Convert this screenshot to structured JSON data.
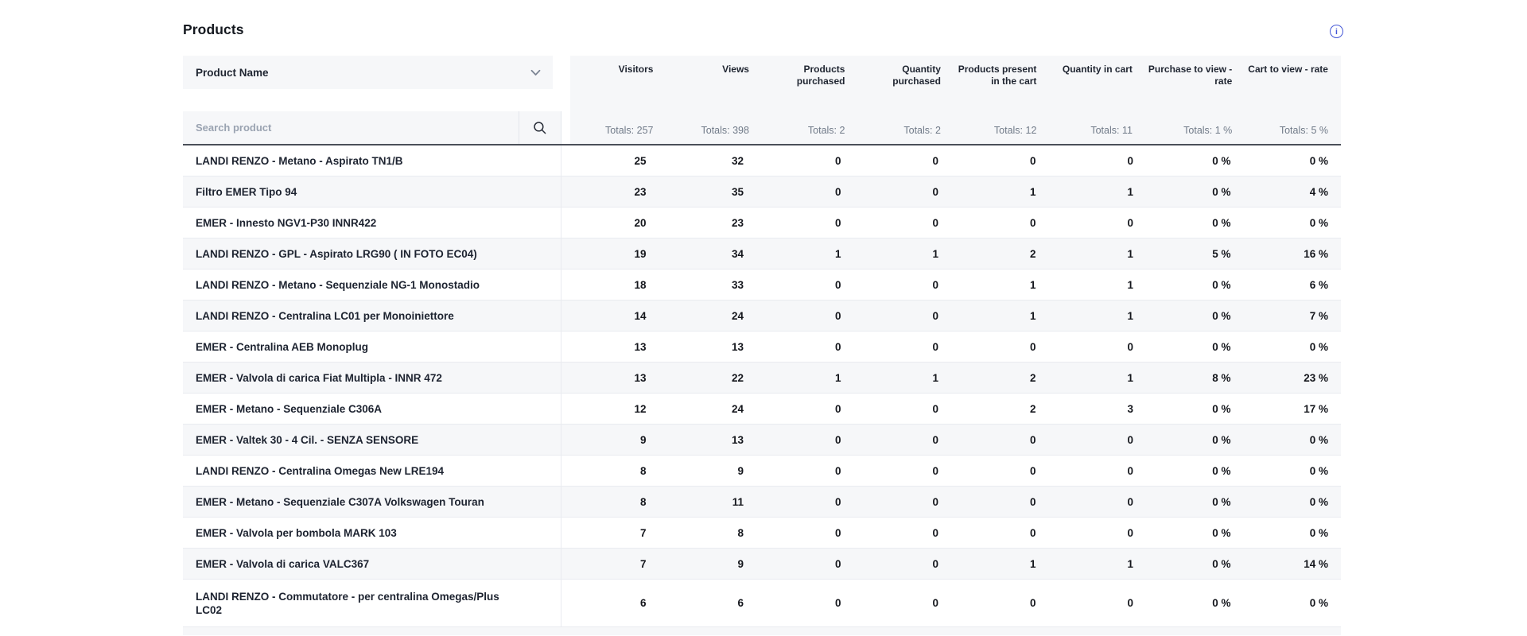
{
  "title": "Products",
  "colors": {
    "accent": "#4356d6",
    "header_bg": "#f6f7f9",
    "dark_divider": "#4b4f59"
  },
  "icons": {
    "info": "info-icon",
    "chevron": "chevron-down-icon",
    "search": "search-icon"
  },
  "product_column": {
    "header": "Product Name",
    "search_placeholder": "Search product"
  },
  "columns": [
    {
      "label": "Visitors",
      "total": "Totals: 257"
    },
    {
      "label": "Views",
      "total": "Totals: 398"
    },
    {
      "label": "Products\npurchased",
      "total": "Totals: 2"
    },
    {
      "label": "Quantity\npurchased",
      "total": "Totals: 2"
    },
    {
      "label": "Products present\nin the cart",
      "total": "Totals: 12"
    },
    {
      "label": "Quantity in cart",
      "total": "Totals: 11"
    },
    {
      "label": "Purchase to view -\nrate",
      "total": "Totals: 1 %"
    },
    {
      "label": "Cart to view - rate",
      "total": "Totals: 5 %"
    }
  ],
  "rows": [
    {
      "name": "LANDI RENZO - Metano - Aspirato TN1/B",
      "values": [
        "25",
        "32",
        "0",
        "0",
        "0",
        "0",
        "0 %",
        "0 %"
      ]
    },
    {
      "name": "Filtro EMER Tipo 94",
      "values": [
        "23",
        "35",
        "0",
        "0",
        "1",
        "1",
        "0 %",
        "4 %"
      ]
    },
    {
      "name": "EMER - Innesto NGV1-P30 INNR422",
      "values": [
        "20",
        "23",
        "0",
        "0",
        "0",
        "0",
        "0 %",
        "0 %"
      ]
    },
    {
      "name": "LANDI RENZO - GPL - Aspirato LRG90 ( IN FOTO EC04)",
      "values": [
        "19",
        "34",
        "1",
        "1",
        "2",
        "1",
        "5 %",
        "16 %"
      ]
    },
    {
      "name": "LANDI RENZO - Metano - Sequenziale NG-1 Monostadio",
      "values": [
        "18",
        "33",
        "0",
        "0",
        "1",
        "1",
        "0 %",
        "6 %"
      ]
    },
    {
      "name": "LANDI RENZO - Centralina LC01 per Monoiniettore",
      "values": [
        "14",
        "24",
        "0",
        "0",
        "1",
        "1",
        "0 %",
        "7 %"
      ]
    },
    {
      "name": "EMER - Centralina AEB Monoplug",
      "values": [
        "13",
        "13",
        "0",
        "0",
        "0",
        "0",
        "0 %",
        "0 %"
      ]
    },
    {
      "name": "EMER - Valvola di carica Fiat Multipla - INNR 472",
      "values": [
        "13",
        "22",
        "1",
        "1",
        "2",
        "1",
        "8 %",
        "23 %"
      ]
    },
    {
      "name": "EMER - Metano - Sequenziale C306A",
      "values": [
        "12",
        "24",
        "0",
        "0",
        "2",
        "3",
        "0 %",
        "17 %"
      ]
    },
    {
      "name": "EMER - Valtek 30 - 4 Cil. - SENZA SENSORE",
      "values": [
        "9",
        "13",
        "0",
        "0",
        "0",
        "0",
        "0 %",
        "0 %"
      ]
    },
    {
      "name": "LANDI RENZO - Centralina Omegas New LRE194",
      "values": [
        "8",
        "9",
        "0",
        "0",
        "0",
        "0",
        "0 %",
        "0 %"
      ]
    },
    {
      "name": "EMER - Metano - Sequenziale C307A Volkswagen Touran",
      "values": [
        "8",
        "11",
        "0",
        "0",
        "0",
        "0",
        "0 %",
        "0 %"
      ]
    },
    {
      "name": "EMER - Valvola per bombola MARK 103",
      "values": [
        "7",
        "8",
        "0",
        "0",
        "0",
        "0",
        "0 %",
        "0 %"
      ]
    },
    {
      "name": "EMER - Valvola di carica VALC367",
      "values": [
        "7",
        "9",
        "0",
        "0",
        "1",
        "1",
        "0 %",
        "14 %"
      ]
    },
    {
      "name": "LANDI RENZO - Commutatore - per centralina Omegas/Plus LC02",
      "values": [
        "6",
        "6",
        "0",
        "0",
        "0",
        "0",
        "0 %",
        "0 %"
      ]
    }
  ]
}
